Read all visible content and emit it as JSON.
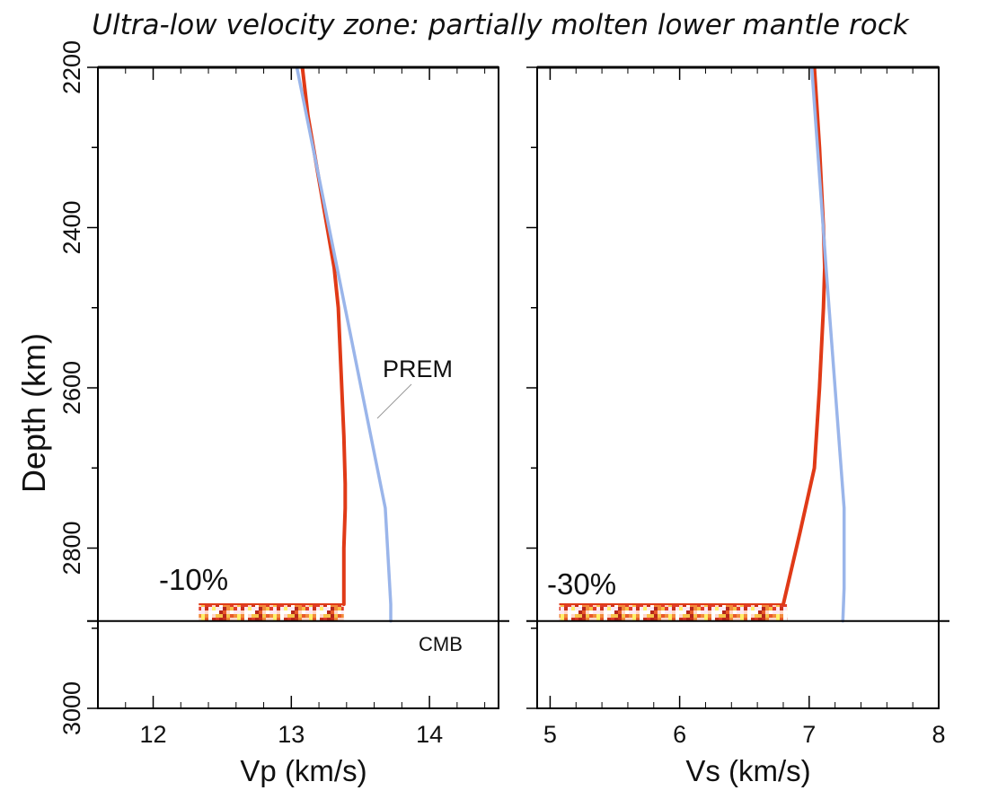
{
  "title": "Ultra-low velocity zone: partially molten lower mantle rock",
  "y_axis_label": "Depth (km)",
  "annotations": {
    "prem_label": "PREM",
    "cmb_label": "CMB",
    "vp_reduction": "-10%",
    "vs_reduction": "-30%"
  },
  "colors": {
    "model": "#e03a17",
    "prem": "#9ab5ea",
    "frame": "#000000",
    "ulvz_texture": [
      "#c9301a",
      "#e85a2a",
      "#f28b3a",
      "#f7c24a",
      "#fff06a",
      "#ffd6c8",
      "#fbe8f3",
      "#e03d2b",
      "#b5261a",
      "#ffffff"
    ]
  },
  "chart_data": [
    {
      "type": "line",
      "name": "vp-panel",
      "xlabel": "Vp (km/s)",
      "xlim": [
        11.6,
        14.5
      ],
      "ylim": [
        2200,
        3000
      ],
      "y_inverted": true,
      "x_ticks": [
        12,
        13,
        14
      ],
      "y_ticks": [
        2200,
        2400,
        2600,
        2800,
        3000
      ],
      "cmb_depth": 2891,
      "ulvz": {
        "top_depth": 2870,
        "bottom_depth": 2891,
        "x_min": 12.33,
        "x_max": 13.38
      },
      "series": [
        {
          "role": "model",
          "x": [
            13.08,
            13.12,
            13.19,
            13.26,
            13.31,
            13.34,
            13.36,
            13.38,
            13.39,
            13.39,
            13.38,
            13.38,
            13.38
          ],
          "depth": [
            2200,
            2260,
            2330,
            2400,
            2450,
            2500,
            2580,
            2660,
            2720,
            2750,
            2800,
            2850,
            2870
          ]
        },
        {
          "role": "prem",
          "name": "PREM",
          "x": [
            13.04,
            13.68,
            13.72,
            13.72
          ],
          "depth": [
            2200,
            2750,
            2870,
            2891
          ]
        }
      ]
    },
    {
      "type": "line",
      "name": "vs-panel",
      "xlabel": "Vs (km/s)",
      "xlim": [
        4.9,
        8.0
      ],
      "ylim": [
        2200,
        3000
      ],
      "y_inverted": true,
      "x_ticks": [
        5,
        6,
        7,
        8
      ],
      "y_ticks": [
        2200,
        2400,
        2600,
        2800,
        3000
      ],
      "cmb_depth": 2891,
      "ulvz": {
        "top_depth": 2870,
        "bottom_depth": 2891,
        "x_min": 5.07,
        "x_max": 6.83
      },
      "series": [
        {
          "role": "model",
          "x": [
            7.04,
            7.08,
            7.11,
            7.12,
            7.11,
            7.08,
            7.04,
            6.93,
            6.8
          ],
          "depth": [
            2200,
            2300,
            2400,
            2450,
            2500,
            2600,
            2700,
            2780,
            2870
          ]
        },
        {
          "role": "prem",
          "name": "PREM",
          "x": [
            7.02,
            7.13,
            7.27,
            7.27,
            7.26
          ],
          "depth": [
            2200,
            2450,
            2750,
            2850,
            2891
          ]
        }
      ]
    }
  ]
}
